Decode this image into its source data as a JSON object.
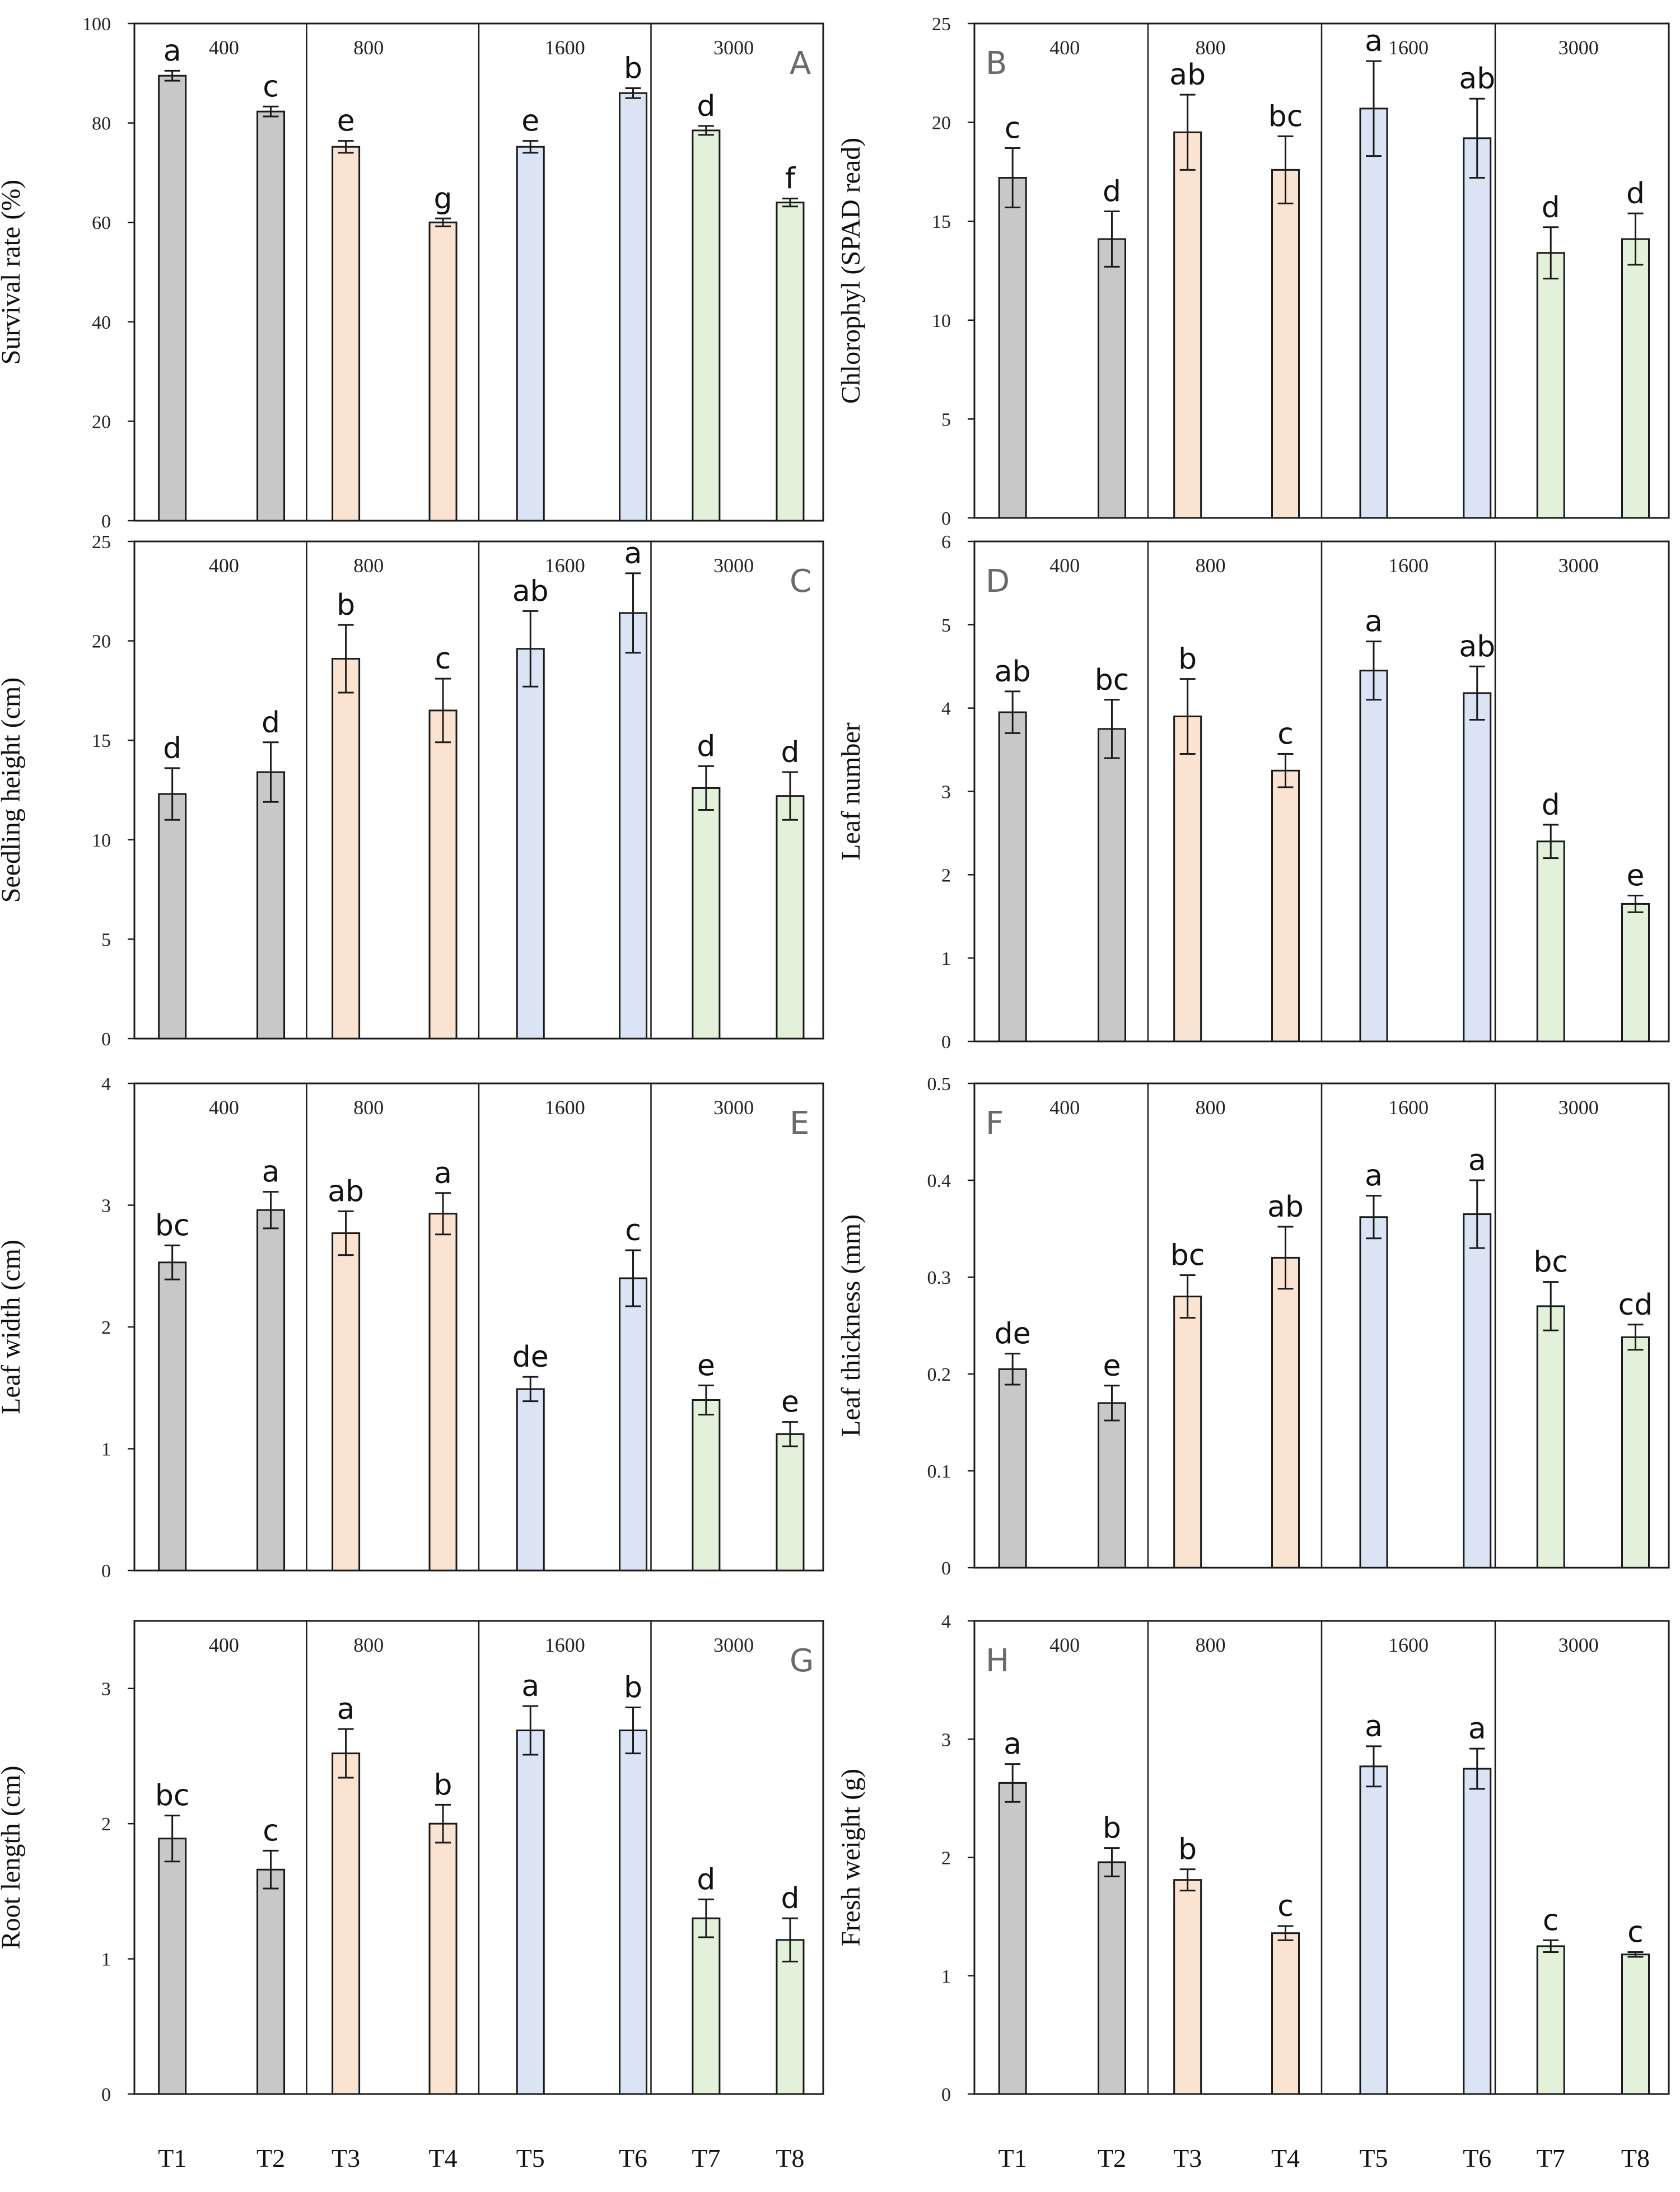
{
  "figure": {
    "x_labels": [
      "T1",
      "T2",
      "T3",
      "T4",
      "T5",
      "T6",
      "T7",
      "T8"
    ],
    "colors": {
      "400": "#c8c8c8",
      "800": "#fbe3d2",
      "1600": "#dae4f4",
      "3000": "#e3f0da",
      "stroke": "#1a1a1a",
      "panel_letter": "#6a6a6a"
    }
  },
  "chart_data": [
    {
      "type": "bar",
      "panel": "A",
      "ylabel": "Survival rate (%)",
      "ylim": [
        0,
        100
      ],
      "yticks": [
        0,
        20,
        40,
        60,
        80,
        100
      ],
      "categories": [
        "T1",
        "T2",
        "T3",
        "T4",
        "T5",
        "T6",
        "T7",
        "T8"
      ],
      "groups": [
        "400",
        "800",
        "1600",
        "3000"
      ],
      "values": [
        89.5,
        82.3,
        75.2,
        60.0,
        75.2,
        86.0,
        78.5,
        64.0
      ],
      "errors": [
        1.0,
        1.0,
        1.2,
        0.8,
        1.2,
        1.0,
        0.9,
        0.8
      ],
      "significance": [
        "a",
        "c",
        "e",
        "g",
        "e",
        "b",
        "d",
        "f"
      ]
    },
    {
      "type": "bar",
      "panel": "B",
      "ylabel": "Chlorophyl (SPAD read)",
      "ylim": [
        0,
        25
      ],
      "yticks": [
        0,
        5,
        10,
        15,
        20,
        25
      ],
      "categories": [
        "T1",
        "T2",
        "T3",
        "T4",
        "T5",
        "T6",
        "T7",
        "T8"
      ],
      "groups": [
        "400",
        "800",
        "1600",
        "3000"
      ],
      "values": [
        17.2,
        14.1,
        19.5,
        17.6,
        20.7,
        19.2,
        13.4,
        14.1
      ],
      "errors": [
        1.5,
        1.4,
        1.9,
        1.7,
        2.4,
        2.0,
        1.3,
        1.3
      ],
      "significance": [
        "c",
        "d",
        "ab",
        "bc",
        "a",
        "ab",
        "d",
        "d"
      ]
    },
    {
      "type": "bar",
      "panel": "C",
      "ylabel": "Seedling height (cm)",
      "ylim": [
        0,
        25
      ],
      "yticks": [
        0,
        5,
        10,
        15,
        20,
        25
      ],
      "categories": [
        "T1",
        "T2",
        "T3",
        "T4",
        "T5",
        "T6",
        "T7",
        "T8"
      ],
      "groups": [
        "400",
        "800",
        "1600",
        "3000"
      ],
      "values": [
        12.3,
        13.4,
        19.1,
        16.5,
        19.6,
        21.4,
        12.6,
        12.2
      ],
      "errors": [
        1.3,
        1.5,
        1.7,
        1.6,
        1.9,
        2.0,
        1.1,
        1.2
      ],
      "significance": [
        "d",
        "d",
        "b",
        "c",
        "ab",
        "a",
        "d",
        "d"
      ]
    },
    {
      "type": "bar",
      "panel": "D",
      "ylabel": "Leaf number",
      "ylim": [
        0,
        6
      ],
      "yticks": [
        0,
        1,
        2,
        3,
        4,
        5,
        6
      ],
      "categories": [
        "T1",
        "T2",
        "T3",
        "T4",
        "T5",
        "T6",
        "T7",
        "T8"
      ],
      "groups": [
        "400",
        "800",
        "1600",
        "3000"
      ],
      "values": [
        3.95,
        3.75,
        3.9,
        3.25,
        4.45,
        4.18,
        2.4,
        1.65
      ],
      "errors": [
        0.25,
        0.35,
        0.45,
        0.2,
        0.35,
        0.32,
        0.2,
        0.1
      ],
      "significance": [
        "ab",
        "bc",
        "b",
        "c",
        "a",
        "ab",
        "d",
        "e"
      ]
    },
    {
      "type": "bar",
      "panel": "E",
      "ylabel": "Leaf width (cm)",
      "ylim": [
        0,
        4
      ],
      "yticks": [
        0,
        1,
        2,
        3,
        4
      ],
      "categories": [
        "T1",
        "T2",
        "T3",
        "T4",
        "T5",
        "T6",
        "T7",
        "T8"
      ],
      "groups": [
        "400",
        "800",
        "1600",
        "3000"
      ],
      "values": [
        2.53,
        2.96,
        2.77,
        2.93,
        1.49,
        2.4,
        1.4,
        1.12
      ],
      "errors": [
        0.14,
        0.15,
        0.18,
        0.17,
        0.1,
        0.23,
        0.12,
        0.1
      ],
      "significance": [
        "bc",
        "a",
        "ab",
        "a",
        "de",
        "c",
        "e",
        "e"
      ]
    },
    {
      "type": "bar",
      "panel": "F",
      "ylabel": "Leaf thickness (mm)",
      "ylim": [
        0,
        0.5
      ],
      "yticks": [
        0,
        0.1,
        0.2,
        0.3,
        0.4,
        0.5
      ],
      "categories": [
        "T1",
        "T2",
        "T3",
        "T4",
        "T5",
        "T6",
        "T7",
        "T8"
      ],
      "groups": [
        "400",
        "800",
        "1600",
        "3000"
      ],
      "values": [
        0.205,
        0.17,
        0.28,
        0.32,
        0.362,
        0.365,
        0.27,
        0.238
      ],
      "errors": [
        0.016,
        0.018,
        0.022,
        0.032,
        0.022,
        0.035,
        0.025,
        0.013
      ],
      "significance": [
        "de",
        "e",
        "bc",
        "ab",
        "a",
        "a",
        "bc",
        "cd"
      ]
    },
    {
      "type": "bar",
      "panel": "G",
      "ylabel": "Root length (cm)",
      "ylim": [
        0,
        3.5
      ],
      "yticks": [
        0,
        1,
        2,
        3
      ],
      "categories": [
        "T1",
        "T2",
        "T3",
        "T4",
        "T5",
        "T6",
        "T7",
        "T8"
      ],
      "groups": [
        "400",
        "800",
        "1600",
        "3000"
      ],
      "values": [
        1.89,
        1.66,
        2.52,
        2.0,
        2.69,
        2.69,
        1.3,
        1.14
      ],
      "errors": [
        0.17,
        0.14,
        0.18,
        0.14,
        0.18,
        0.17,
        0.14,
        0.16
      ],
      "significance": [
        "bc",
        "c",
        "a",
        "b",
        "a",
        "b",
        "d",
        "d"
      ]
    },
    {
      "type": "bar",
      "panel": "H",
      "ylabel": "Fresh weight (g)",
      "ylim": [
        0,
        4
      ],
      "yticks": [
        0,
        1,
        2,
        3,
        4
      ],
      "categories": [
        "T1",
        "T2",
        "T3",
        "T4",
        "T5",
        "T6",
        "T7",
        "T8"
      ],
      "groups": [
        "400",
        "800",
        "1600",
        "3000"
      ],
      "values": [
        2.63,
        1.96,
        1.81,
        1.36,
        2.77,
        2.75,
        1.25,
        1.18
      ],
      "errors": [
        0.16,
        0.12,
        0.09,
        0.06,
        0.17,
        0.17,
        0.05,
        0.02
      ],
      "significance": [
        "a",
        "b",
        "b",
        "c",
        "a",
        "a",
        "c",
        "c"
      ]
    }
  ]
}
